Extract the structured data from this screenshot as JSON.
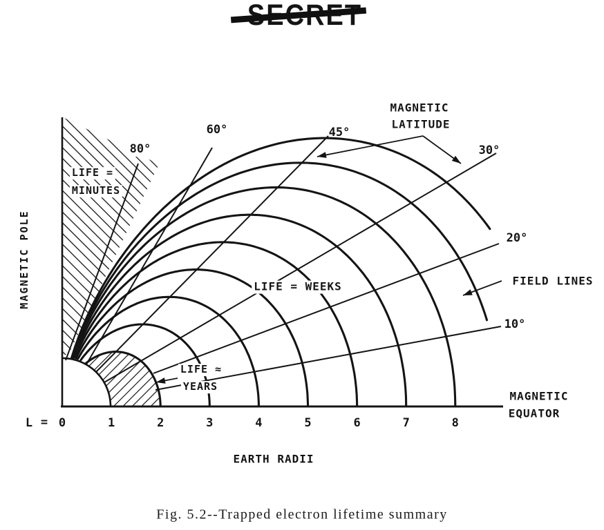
{
  "stamp": {
    "text": "SECRET"
  },
  "figure": {
    "caption": "Fig. 5.2--Trapped electron lifetime summary",
    "axes": {
      "pole_label": "MAGNETIC POLE",
      "equator_label": [
        "MAGNETIC",
        "EQUATOR"
      ],
      "x_axis_label": "EARTH RADII",
      "l_prefix": "L",
      "equals": "=",
      "l_ticks": [
        "0",
        "1",
        "2",
        "3",
        "4",
        "5",
        "6",
        "7",
        "8"
      ]
    },
    "annotations": {
      "magnetic_latitude": [
        "MAGNETIC",
        "LATITUDE"
      ],
      "field_lines": "FIELD LINES",
      "life_minutes": [
        "LIFE =",
        "MINUTES"
      ],
      "life_weeks": "LIFE = WEEKS",
      "life_years": [
        "LIFE ≈",
        "YEARS"
      ]
    },
    "latitude_lines": [
      {
        "deg": 80,
        "label": "80°"
      },
      {
        "deg": 60,
        "label": "60°"
      },
      {
        "deg": 45,
        "label": "45°"
      },
      {
        "deg": 30,
        "label": "30°"
      },
      {
        "deg": 20,
        "label": "20°"
      },
      {
        "deg": 10,
        "label": "10°"
      }
    ],
    "field_line_l_shells": [
      2,
      3,
      4,
      5,
      6,
      7,
      8
    ],
    "partial_outer_shells": [
      {
        "l": 8.9,
        "min_latitude_deg": 8
      },
      {
        "l": 9.8,
        "min_latitude_deg": 16
      }
    ],
    "earth_radius_l": 1,
    "ink_color": "#141414"
  }
}
